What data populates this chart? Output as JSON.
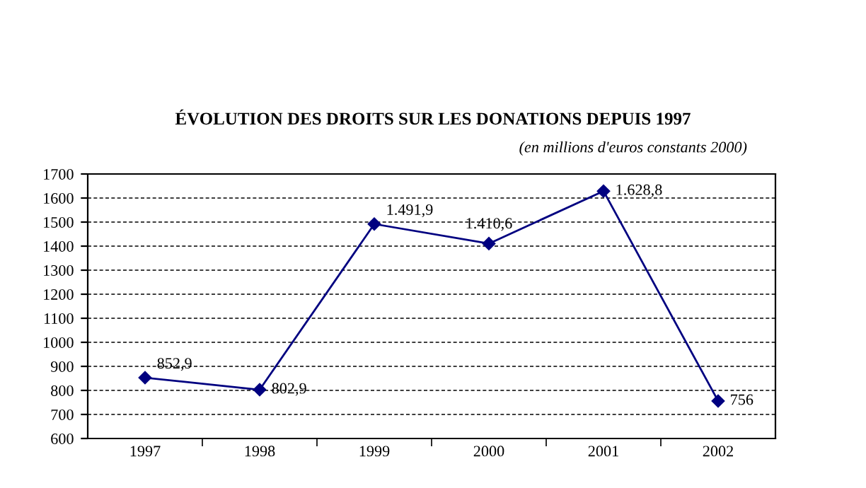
{
  "chart_data": {
    "type": "line",
    "title": "ÉVOLUTION DES DROITS SUR LES DONATIONS DEPUIS 1997",
    "subtitle": "(en millions d'euros constants 2000)",
    "categories": [
      "1997",
      "1998",
      "1999",
      "2000",
      "2001",
      "2002"
    ],
    "series": [
      {
        "color": "#000080",
        "values": [
          852.9,
          802.9,
          1491.9,
          1410.6,
          1628.8,
          756
        ],
        "value_labels": [
          "852,9",
          "802,9",
          "1.491,9",
          "1.410,6",
          "1.628,8",
          "756"
        ]
      }
    ],
    "ylim": [
      600,
      1700
    ],
    "yticks": [
      600,
      700,
      800,
      900,
      1000,
      1100,
      1200,
      1300,
      1400,
      1500,
      1600,
      1700
    ],
    "grid": "y",
    "line_style": "solid",
    "marker": "diamond",
    "legend": false
  }
}
